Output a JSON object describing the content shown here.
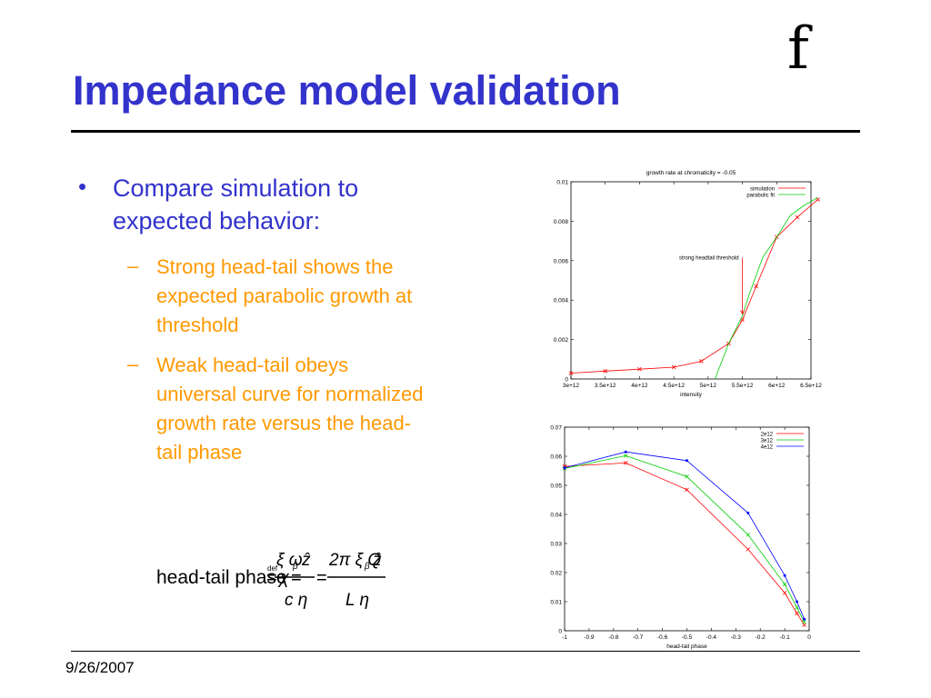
{
  "slide": {
    "title": "Impedance model validation",
    "logo": "f",
    "date": "9/26/2007",
    "bullet": "Compare simulation to expected behavior:",
    "sub_items": [
      "Strong head-tail shows the expected parabolic growth at threshold",
      "Weak head-tail obeys universal curve for normalized growth rate versus the head-tail phase"
    ],
    "bullet_char": "•",
    "dash_char": "–",
    "formula": {
      "lhs": "head-tail phase",
      "def": "def",
      "chi": "χ",
      "num1": "ξ ω",
      "num1_sub": "β",
      "num1_z": "ẑ",
      "den1": "c η",
      "num2": "2π ξ Q",
      "num2_sub": "β",
      "num2_z": "ẑ",
      "den2": "L η"
    },
    "colors": {
      "title": "#3333cc",
      "subtext": "#ff9900"
    }
  },
  "chart_data": [
    {
      "type": "line",
      "title": "growth rate at chromaticity = -0.05",
      "xlabel": "intensity",
      "ylabel": "",
      "xlim": [
        3000000000000.0,
        6500000000000.0
      ],
      "ylim": [
        0,
        0.01
      ],
      "x_ticks": [
        "3e+12",
        "3.5e+12",
        "4e+12",
        "4.5e+12",
        "5e+12",
        "5.5e+12",
        "6e+12",
        "6.5e+12"
      ],
      "y_ticks": [
        "0",
        "0.002",
        "0.004",
        "0.006",
        "0.008",
        "0.01"
      ],
      "legend_position": "top-right",
      "annotation": "strong headtail threshold",
      "series": [
        {
          "name": "simulation",
          "color": "#ff0000",
          "x": [
            3000000000000.0,
            3500000000000.0,
            4000000000000.0,
            4500000000000.0,
            4900000000000.0,
            5300000000000.0,
            5500000000000.0,
            5700000000000.0,
            6000000000000.0,
            6300000000000.0,
            6600000000000.0
          ],
          "y": [
            0.0003,
            0.0004,
            0.0005,
            0.0006,
            0.0009,
            0.0018,
            0.003,
            0.0047,
            0.0072,
            0.0082,
            0.0091
          ]
        },
        {
          "name": "parabolic fit",
          "color": "#00cc00",
          "x": [
            5100000000000.0,
            5200000000000.0,
            5300000000000.0,
            5400000000000.0,
            5500000000000.0,
            5600000000000.0,
            5800000000000.0,
            6000000000000.0,
            6200000000000.0,
            6400000000000.0,
            6600000000000.0
          ],
          "y": [
            0,
            0.0009,
            0.0018,
            0.0025,
            0.0032,
            0.0043,
            0.0062,
            0.0072,
            0.0083,
            0.0088,
            0.0092
          ]
        }
      ]
    },
    {
      "type": "line",
      "title": "",
      "xlabel": "head-tail phase",
      "ylabel": "",
      "xlim": [
        -1,
        0
      ],
      "ylim": [
        0,
        0.07
      ],
      "x_ticks": [
        "-1",
        "-0.9",
        "-0.8",
        "-0.7",
        "-0.6",
        "-0.5",
        "-0.4",
        "-0.3",
        "-0.2",
        "-0.1",
        "0"
      ],
      "y_ticks": [
        "0",
        "0.01",
        "0.02",
        "0.03",
        "0.04",
        "0.05",
        "0.06",
        "0.07"
      ],
      "legend_position": "top-right",
      "series": [
        {
          "name": "2e12",
          "color": "#ff0000",
          "x": [
            -1,
            -0.75,
            -0.5,
            -0.25,
            -0.1,
            -0.05,
            -0.02
          ],
          "y": [
            0.0565,
            0.0577,
            0.0485,
            0.028,
            0.013,
            0.006,
            0.002
          ]
        },
        {
          "name": "3e12",
          "color": "#00cc00",
          "x": [
            -1,
            -0.75,
            -0.5,
            -0.25,
            -0.1,
            -0.05,
            -0.02
          ],
          "y": [
            0.0558,
            0.0602,
            0.053,
            0.033,
            0.016,
            0.008,
            0.003
          ]
        },
        {
          "name": "4e12",
          "color": "#0000ff",
          "x": [
            -1,
            -0.75,
            -0.5,
            -0.25,
            -0.1,
            -0.05,
            -0.02
          ],
          "y": [
            0.056,
            0.0615,
            0.0585,
            0.0405,
            0.019,
            0.01,
            0.004
          ]
        }
      ]
    }
  ]
}
